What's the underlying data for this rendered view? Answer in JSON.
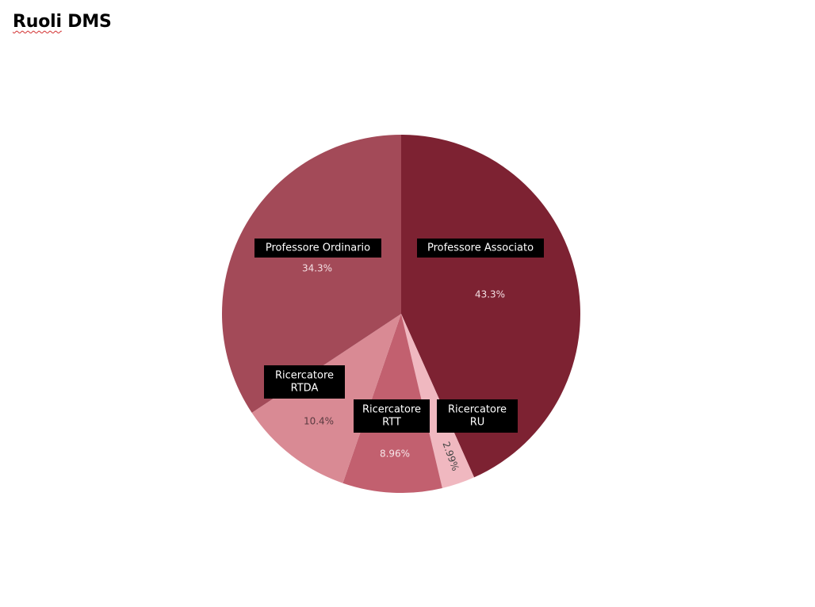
{
  "page": {
    "title_main": "Ruoli",
    "title_rest": " DMS"
  },
  "chart_data": {
    "type": "pie",
    "title": "Ruoli DMS",
    "start_angle_deg": 0,
    "direction": "clockwise",
    "slices": [
      {
        "label_lines": [
          "Professore Associato"
        ],
        "value": 43.3,
        "value_label": "43.3%",
        "color": "#7d2232",
        "pct_color": "#f3dfe3"
      },
      {
        "label_lines": [
          "Ricercatore",
          "RU"
        ],
        "value": 2.99,
        "value_label": "2.99%",
        "color": "#f0b8c0",
        "pct_color": "#444444"
      },
      {
        "label_lines": [
          "Ricercatore",
          "RTT"
        ],
        "value": 8.96,
        "value_label": "8.96%",
        "color": "#c2606f",
        "pct_color": "#f7e6e9"
      },
      {
        "label_lines": [
          "Ricercatore",
          "RTDA"
        ],
        "value": 10.4,
        "value_label": "10.4%",
        "color": "#d98a94",
        "pct_color": "#5a3a40"
      },
      {
        "label_lines": [
          "Professore Ordinario"
        ],
        "value": 34.3,
        "value_label": "34.3%",
        "color": "#a34a58",
        "pct_color": "#f3dfe3"
      }
    ],
    "legend": "none",
    "label_style": "black boxes with white text"
  }
}
